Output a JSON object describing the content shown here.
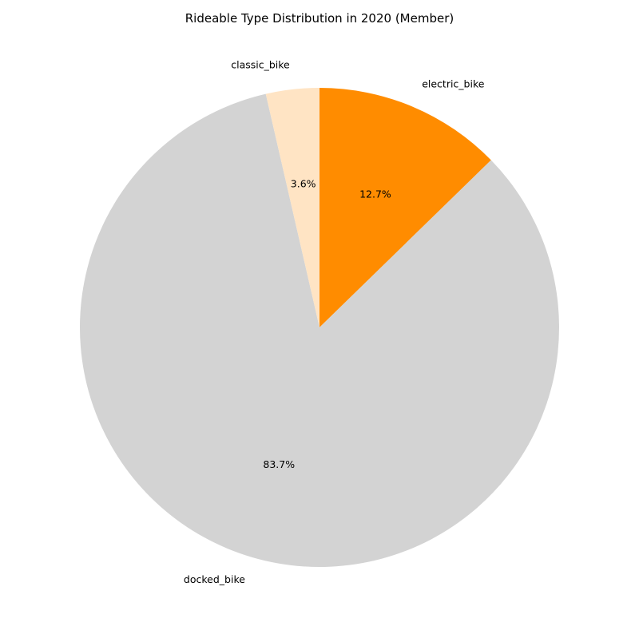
{
  "chart_data": {
    "type": "pie",
    "title": "Rideable Type Distribution in 2020 (Member)",
    "slices": [
      {
        "label": "electric_bike",
        "value": 12.7,
        "pct_text": "12.7%",
        "color": "#ff8c00"
      },
      {
        "label": "docked_bike",
        "value": 83.7,
        "pct_text": "83.7%",
        "color": "#d3d3d3"
      },
      {
        "label": "classic_bike",
        "value": 3.6,
        "pct_text": "3.6%",
        "color": "#ffe4c4"
      }
    ],
    "start_angle_deg": 90,
    "direction": "clockwise"
  }
}
